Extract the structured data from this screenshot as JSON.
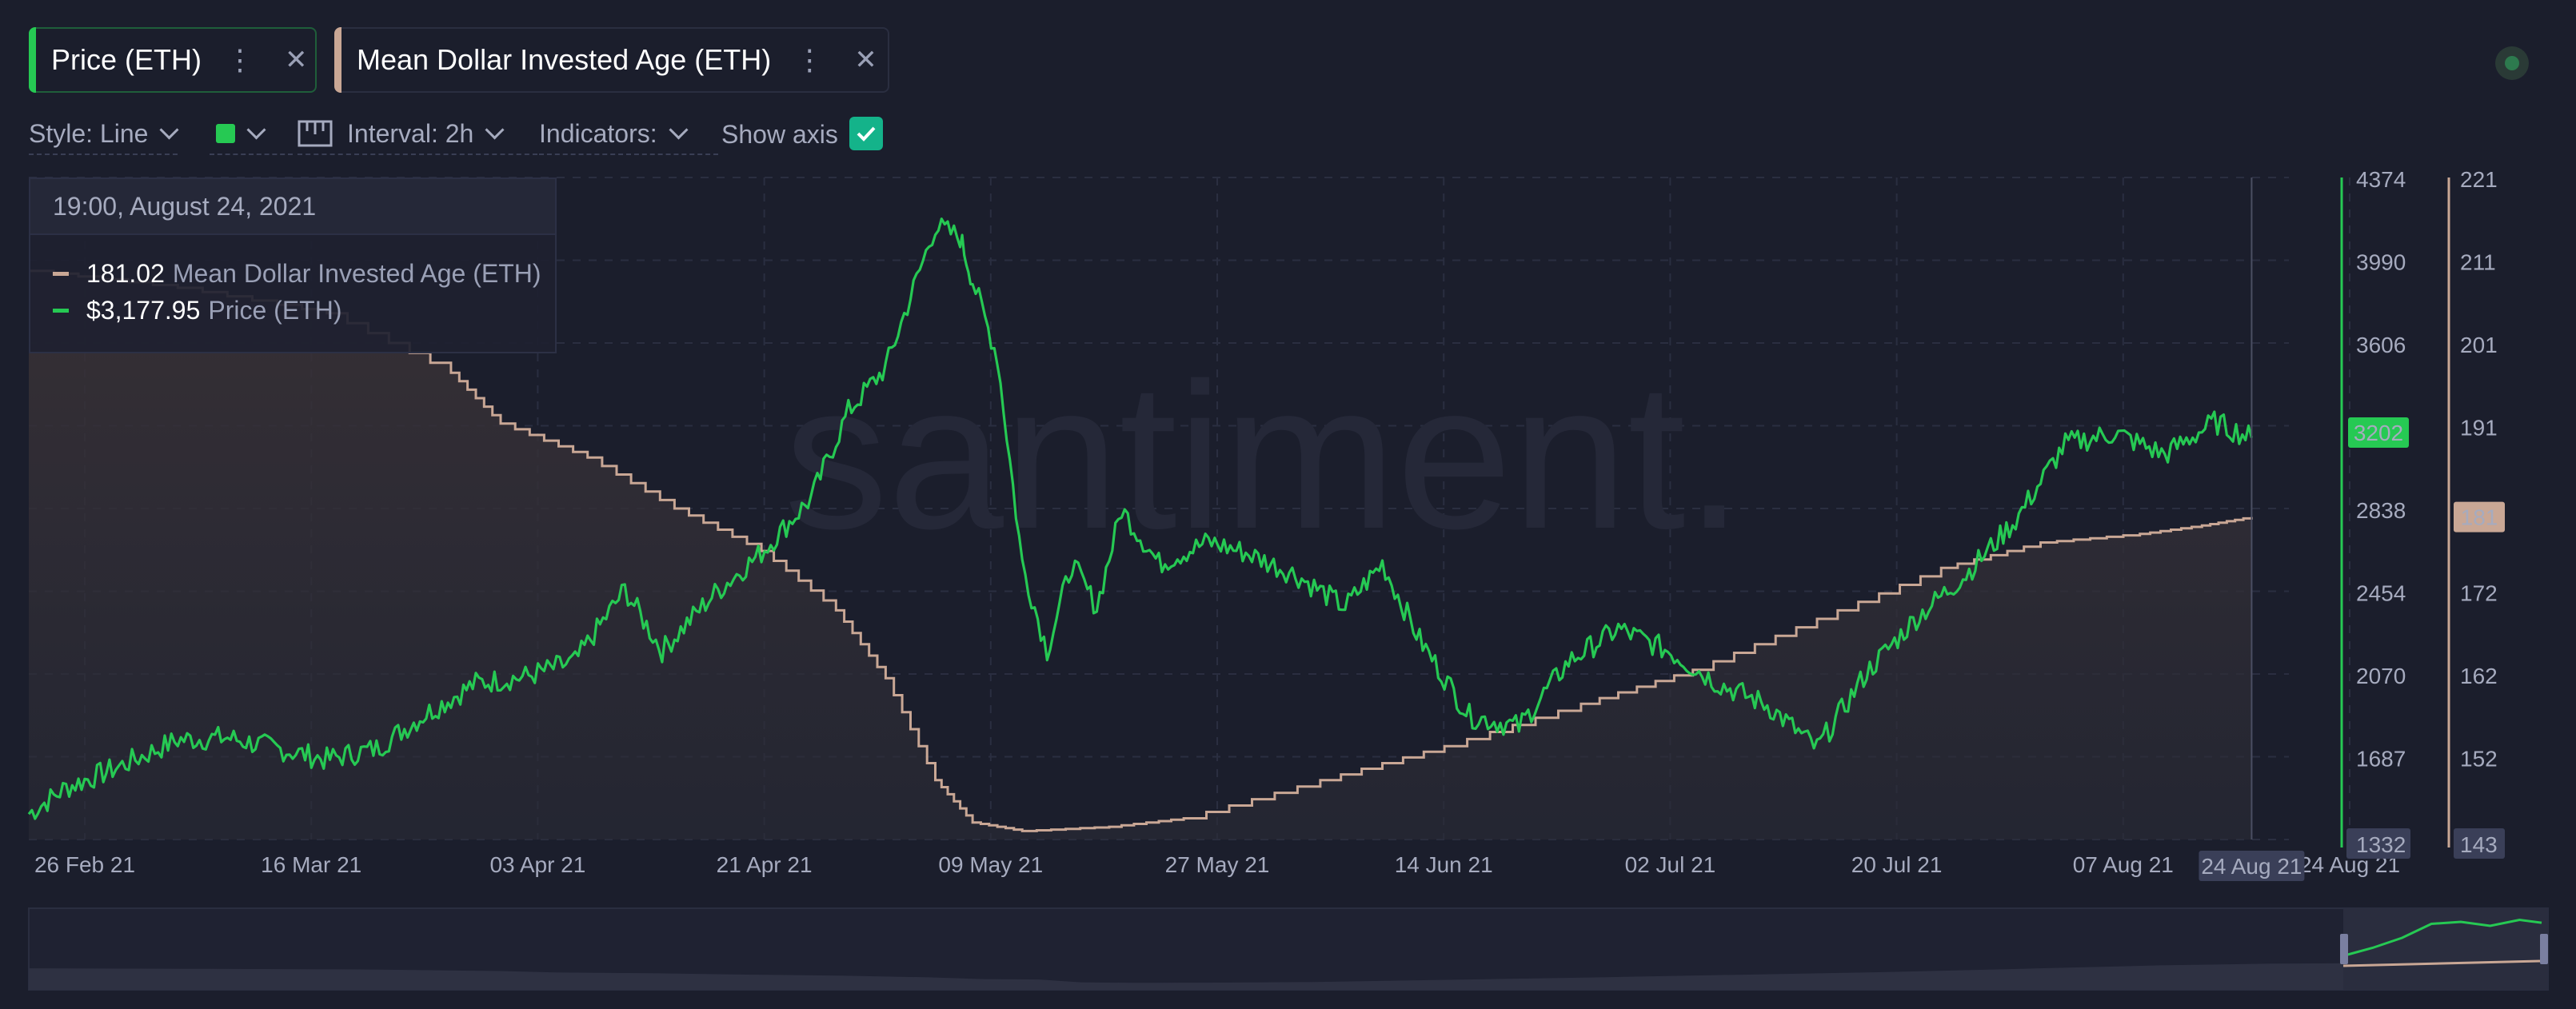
{
  "tabs": [
    {
      "label": "Price (ETH)",
      "color": "#26c953"
    },
    {
      "label": "Mean Dollar Invested Age (ETH)",
      "color": "#c9a795"
    }
  ],
  "toolbar": {
    "style_label": "Style: Line",
    "interval_label": "Interval: 2h",
    "indicators_label": "Indicators:",
    "show_axis_label": "Show axis",
    "show_axis_checked": true
  },
  "watermark": "santiment.",
  "tooltip": {
    "date": "19:00, August 24, 2021",
    "rows": [
      {
        "value": "181.02",
        "name": "Mean Dollar Invested Age (ETH)",
        "color": "#c9a795"
      },
      {
        "value": "$3,177.95",
        "name": "Price (ETH)",
        "color": "#26c953"
      }
    ]
  },
  "chart_data": {
    "type": "line",
    "x_tick_labels": [
      "26 Feb 21",
      "16 Mar 21",
      "03 Apr 21",
      "21 Apr 21",
      "09 May 21",
      "27 May 21",
      "14 Jun 21",
      "02 Jul 21",
      "20 Jul 21",
      "07 Aug 21",
      "24 Aug 21"
    ],
    "x_range": [
      "2021-02-26",
      "2021-08-27"
    ],
    "crosshair_label": "24 Aug 21",
    "axes": {
      "price": {
        "ticks": [
          "4374",
          "3990",
          "3606",
          "3202",
          "2838",
          "2454",
          "2070",
          "1687",
          "1332"
        ],
        "range": [
          1332,
          4374
        ],
        "color": "#26c953"
      },
      "mdia": {
        "ticks": [
          "221",
          "211",
          "201",
          "191",
          "181",
          "172",
          "162",
          "152",
          "143"
        ],
        "range": [
          143,
          221
        ],
        "color": "#c9a795"
      }
    },
    "current_price_badge": "3202",
    "current_mdia_badge": "181",
    "series": [
      {
        "name": "Price (ETH)",
        "color": "#26c953",
        "x": [
          "2021-02-26",
          "2021-03-01",
          "2021-03-05",
          "2021-03-10",
          "2021-03-14",
          "2021-03-18",
          "2021-03-22",
          "2021-03-26",
          "2021-03-30",
          "2021-04-03",
          "2021-04-07",
          "2021-04-11",
          "2021-04-15",
          "2021-04-18",
          "2021-04-22",
          "2021-04-26",
          "2021-04-30",
          "2021-05-03",
          "2021-05-06",
          "2021-05-10",
          "2021-05-12",
          "2021-05-13",
          "2021-05-15",
          "2021-05-17",
          "2021-05-19",
          "2021-05-21",
          "2021-05-23",
          "2021-05-25",
          "2021-05-28",
          "2021-06-01",
          "2021-06-04",
          "2021-06-08",
          "2021-06-12",
          "2021-06-15",
          "2021-06-18",
          "2021-06-22",
          "2021-06-26",
          "2021-06-30",
          "2021-07-04",
          "2021-07-08",
          "2021-07-12",
          "2021-07-16",
          "2021-07-20",
          "2021-07-24",
          "2021-07-28",
          "2021-08-01",
          "2021-08-05",
          "2021-08-09",
          "2021-08-13",
          "2021-08-17",
          "2021-08-21",
          "2021-08-24"
        ],
        "values": [
          1450,
          1570,
          1660,
          1790,
          1800,
          1750,
          1700,
          1750,
          1910,
          2050,
          2080,
          2150,
          2480,
          2200,
          2450,
          2650,
          2900,
          3300,
          3500,
          4150,
          4100,
          3900,
          3550,
          2600,
          2200,
          2600,
          2400,
          2850,
          2600,
          2700,
          2650,
          2550,
          2400,
          2600,
          2250,
          1900,
          1850,
          2150,
          2300,
          2200,
          2050,
          1950,
          1750,
          2100,
          2350,
          2550,
          2800,
          3150,
          3200,
          3100,
          3250,
          3178
        ]
      },
      {
        "name": "Mean Dollar Invested Age (ETH)",
        "color": "#c9a795",
        "x": [
          "2021-02-26",
          "2021-03-10",
          "2021-03-22",
          "2021-04-01",
          "2021-04-05",
          "2021-04-12",
          "2021-04-19",
          "2021-04-26",
          "2021-05-02",
          "2021-05-06",
          "2021-05-10",
          "2021-05-13",
          "2021-05-17",
          "2021-05-24",
          "2021-05-30",
          "2021-06-10",
          "2021-06-20",
          "2021-07-01",
          "2021-07-10",
          "2021-07-20",
          "2021-07-30",
          "2021-08-07",
          "2021-08-15",
          "2021-08-20",
          "2021-08-24"
        ],
        "values": [
          210,
          208,
          205,
          198,
          192,
          188,
          182,
          177,
          170,
          162,
          150,
          145,
          144,
          144.5,
          145.5,
          150,
          154,
          159,
          163,
          169,
          175,
          178,
          179,
          180,
          181
        ]
      }
    ]
  }
}
